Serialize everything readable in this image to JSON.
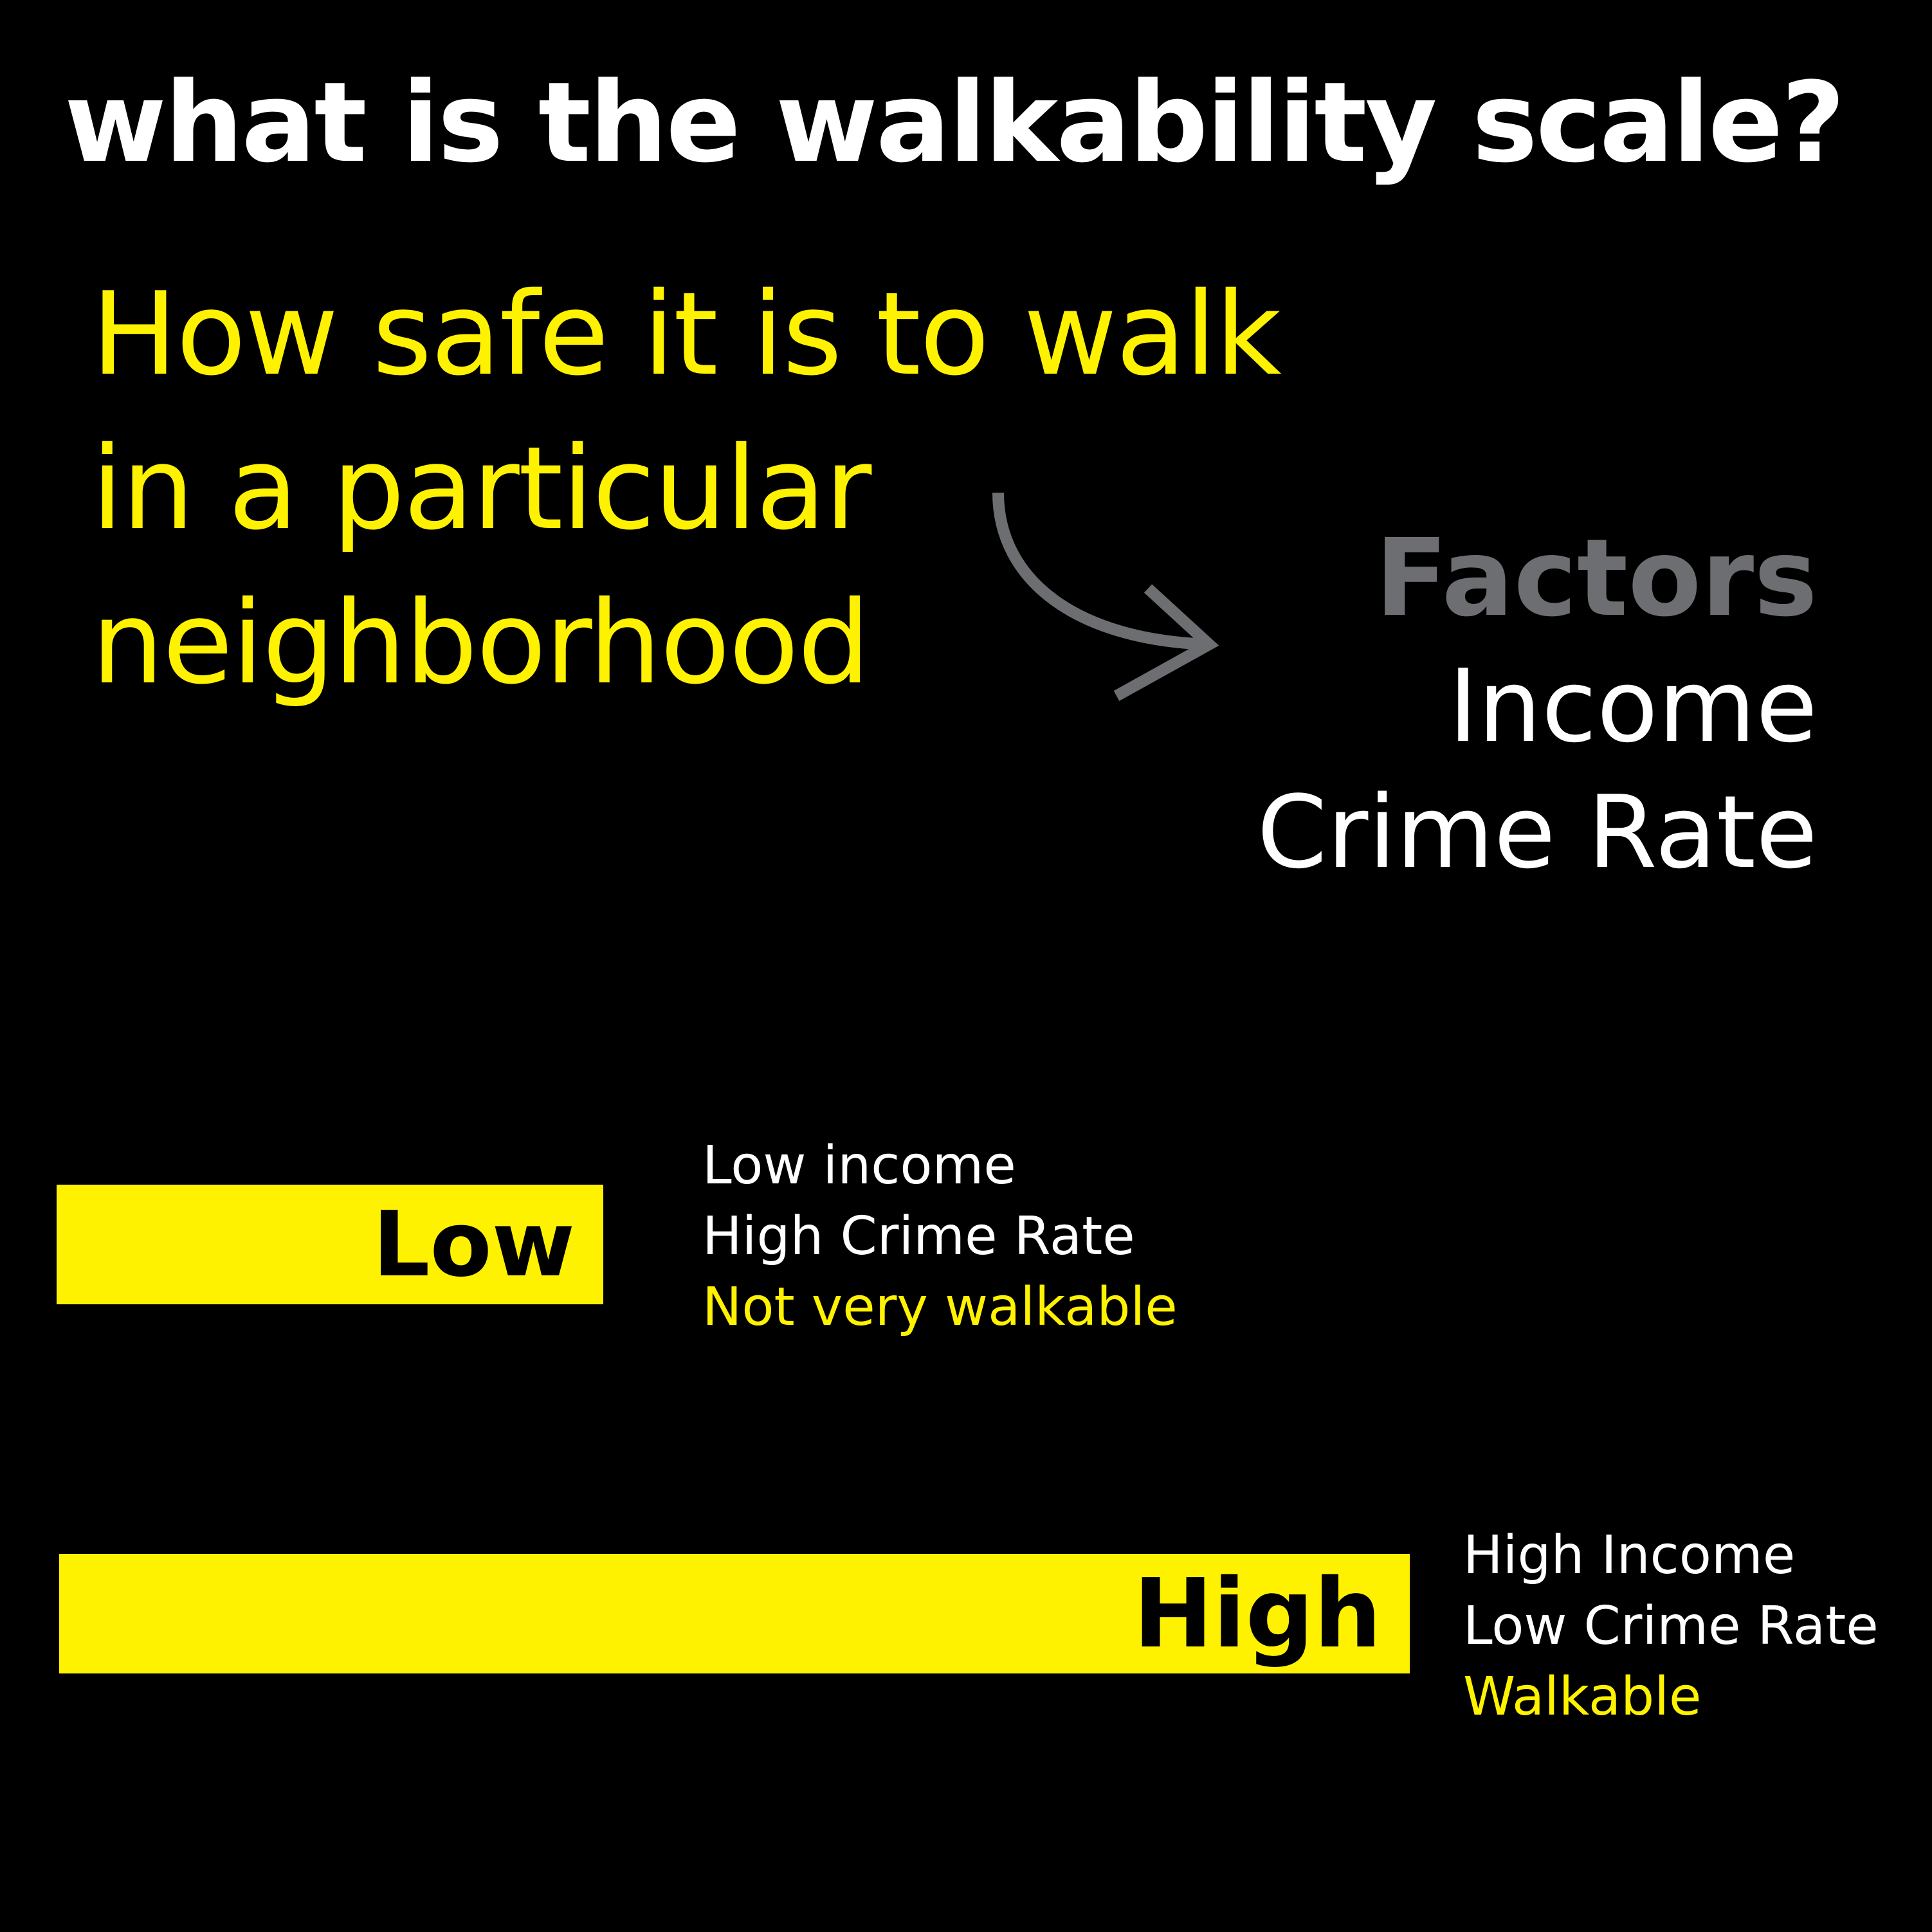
{
  "title": "what is the walkability scale?",
  "definition": {
    "lines": [
      "How safe it is to walk",
      "in a particular",
      "neighborhood"
    ]
  },
  "factors": {
    "heading": "Factors",
    "items": [
      "Income",
      "Crime Rate"
    ]
  },
  "scale": {
    "low": {
      "label": "Low",
      "income": "Low income",
      "crime": "High Crime Rate",
      "verdict": "Not very walkable"
    },
    "high": {
      "label": "High",
      "income": "High Income",
      "crime": "Low Crime Rate",
      "verdict": "Walkable"
    }
  },
  "colors": {
    "background": "#000000",
    "accent": "#fff200",
    "text": "#ffffff",
    "muted": "#6d6e71",
    "bar_text": "#000000"
  },
  "icons": {
    "arrow": "curved-arrow-right-icon"
  }
}
